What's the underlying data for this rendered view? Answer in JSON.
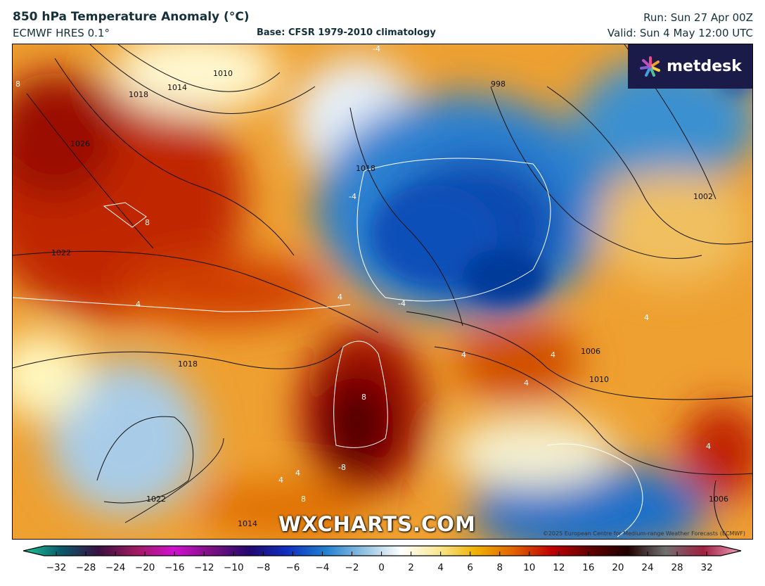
{
  "header": {
    "title": "850 hPa Temperature Anomaly (°C)",
    "model": "ECMWF HRES 0.1°",
    "base": "Base: CFSR 1979-2010 climatology",
    "run": "Run: Sun 27 Apr 00Z",
    "valid": "Valid: Sun 4 May 12:00 UTC"
  },
  "map": {
    "logo_text": "metdesk",
    "watermark": "WXCHARTS.COM",
    "copyright": "©2025 European Centre for Medium-range Weather Forecasts (ECMWF)",
    "isobar_labels": [
      "1010",
      "1014",
      "1018",
      "1026",
      "1022",
      "1018",
      "1022",
      "1002",
      "1006",
      "1010",
      "1006",
      "998",
      "1018",
      "1014"
    ],
    "anomaly_labels": [
      "8",
      "8",
      "4",
      "4",
      "-4",
      "-4",
      "4",
      "4",
      "8",
      "4",
      "4",
      "4",
      "4",
      "8",
      "-8",
      "4",
      "-4"
    ]
  },
  "colorbar": {
    "ticks": [
      "−32",
      "−28",
      "−24",
      "−20",
      "−16",
      "−12",
      "−10",
      "−8",
      "−6",
      "−4",
      "−2",
      "0",
      "2",
      "4",
      "6",
      "8",
      "10",
      "12",
      "16",
      "20",
      "24",
      "28",
      "32"
    ],
    "colors": [
      "#1bc79a",
      "#0a5a6a",
      "#3a1040",
      "#a01a60",
      "#d010d0",
      "#7a1080",
      "#200870",
      "#1030c0",
      "#2080d0",
      "#90c0e0",
      "#ffffff",
      "#f8e890",
      "#f0b000",
      "#e06000",
      "#c00000",
      "#600000",
      "#200000",
      "#707070",
      "#a02040",
      "#f0a0c0"
    ]
  }
}
